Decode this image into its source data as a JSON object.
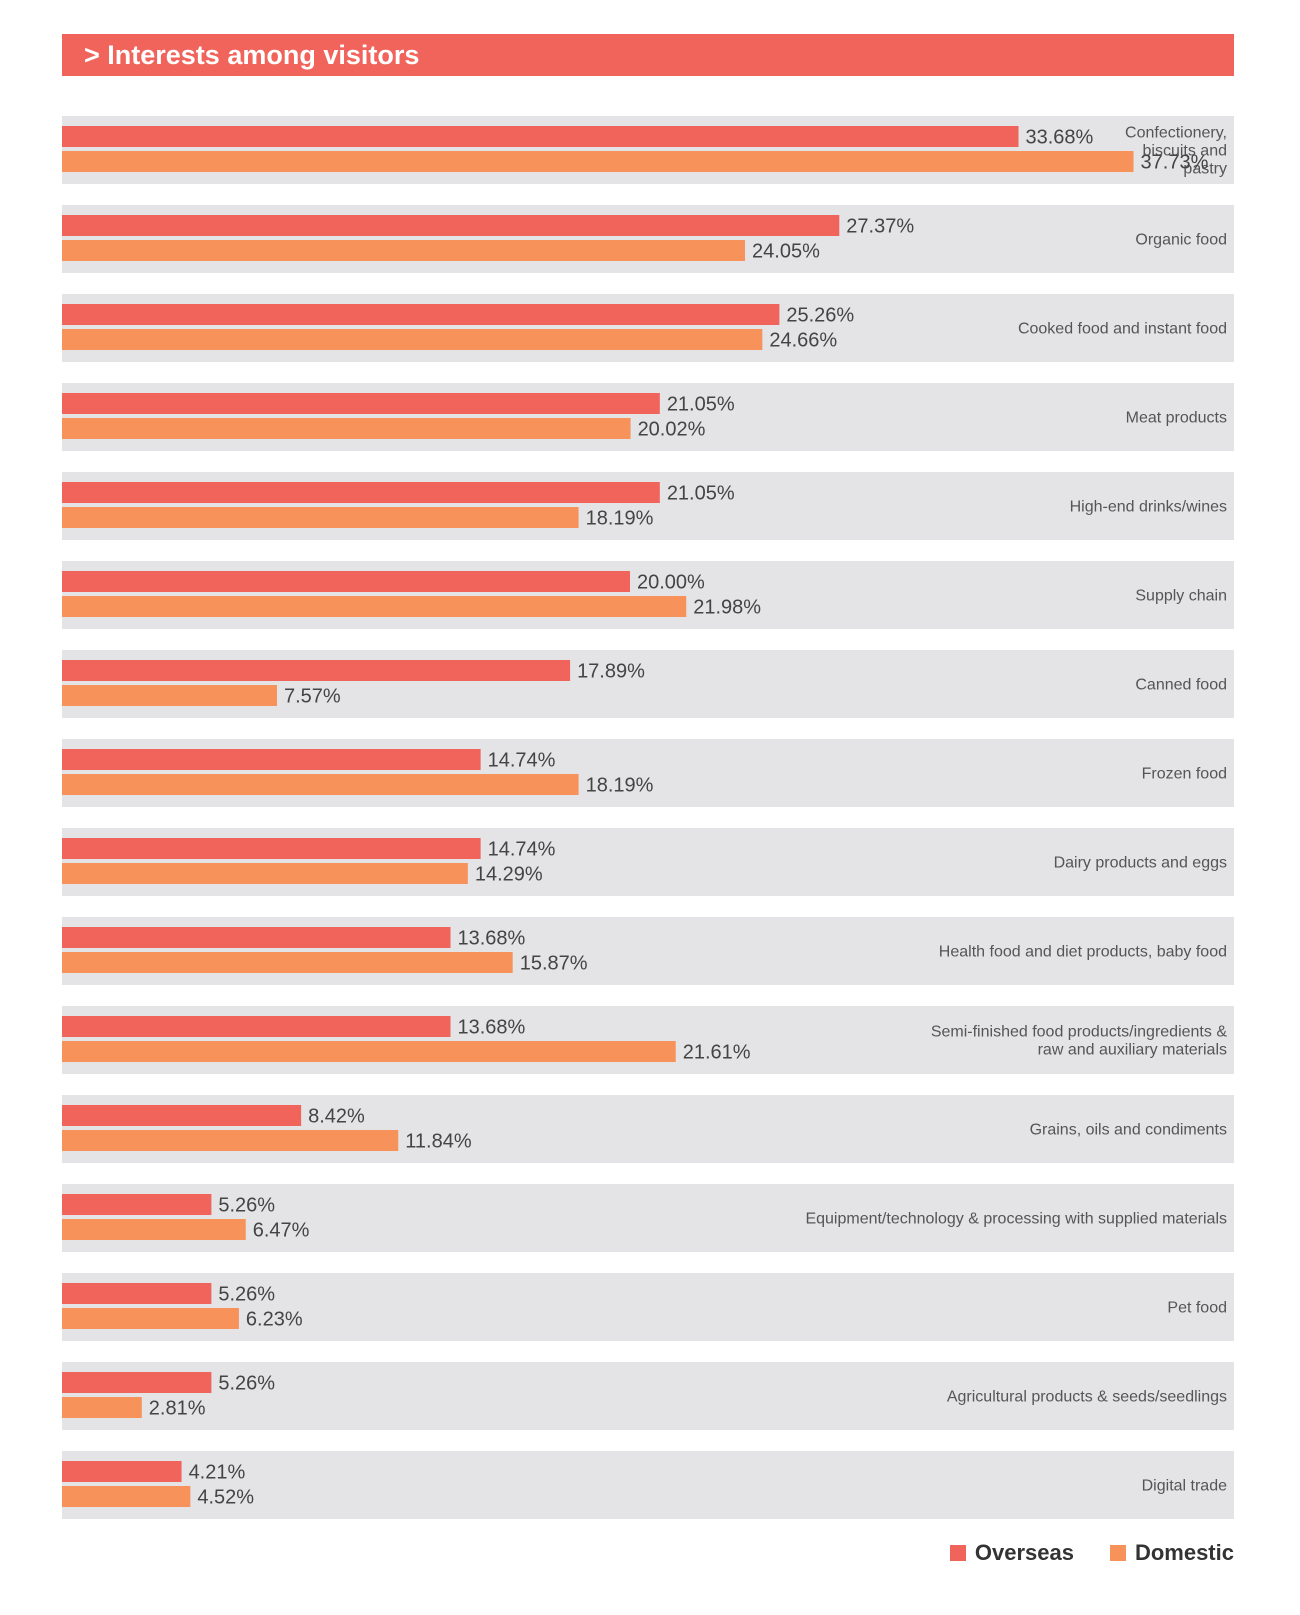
{
  "chart_data": {
    "type": "bar",
    "orientation": "horizontal",
    "title": "> Interests among visitors",
    "categories": [
      "Confectionery, biscuits and pastry",
      "Organic food",
      "Cooked food and instant food",
      "Meat products",
      "High-end drinks/wines",
      "Supply chain",
      "Canned food",
      "Frozen food",
      "Dairy products and eggs",
      "Health food and diet products, baby food",
      "Semi-finished food products/ingredients & raw and auxiliary materials",
      "Grains, oils and condiments",
      "Equipment/technology & processing with supplied materials",
      "Pet food",
      "Agricultural products & seeds/seedlings",
      "Digital trade"
    ],
    "category_lines": [
      [
        "Confectionery,",
        "biscuits and",
        "pastry"
      ],
      [
        "Organic food"
      ],
      [
        "Cooked food and instant food"
      ],
      [
        "Meat products"
      ],
      [
        "High-end drinks/wines"
      ],
      [
        "Supply chain"
      ],
      [
        "Canned food"
      ],
      [
        "Frozen food"
      ],
      [
        "Dairy products and eggs"
      ],
      [
        "Health food and diet products, baby food"
      ],
      [
        "Semi-finished food products/ingredients &",
        "raw and auxiliary materials"
      ],
      [
        "Grains, oils and condiments"
      ],
      [
        "Equipment/technology & processing with supplied materials"
      ],
      [
        "Pet food"
      ],
      [
        "Agricultural products & seeds/seedlings"
      ],
      [
        "Digital trade"
      ]
    ],
    "series": [
      {
        "name": "Overseas",
        "color": "#f0645c",
        "values": [
          33.68,
          27.37,
          25.26,
          21.05,
          21.05,
          20.0,
          17.89,
          14.74,
          14.74,
          13.68,
          13.68,
          8.42,
          5.26,
          5.26,
          5.26,
          4.21
        ],
        "labels": [
          "33.68%",
          "27.37%",
          "25.26%",
          "21.05%",
          "21.05%",
          "20.00%",
          "17.89%",
          "14.74%",
          "14.74%",
          "13.68%",
          "13.68%",
          "8.42%",
          "5.26%",
          "5.26%",
          "5.26%",
          "4.21%"
        ]
      },
      {
        "name": "Domestic",
        "color": "#f7935a",
        "values": [
          37.73,
          24.05,
          24.66,
          20.02,
          18.19,
          21.98,
          7.57,
          18.19,
          14.29,
          15.87,
          21.61,
          11.84,
          6.47,
          6.23,
          2.81,
          4.52
        ],
        "labels": [
          "37.73%",
          "24.05%",
          "24.66%",
          "20.02%",
          "18.19%",
          "21.98%",
          "7.57%",
          "18.19%",
          "14.29%",
          "15.87%",
          "21.61%",
          "11.84%",
          "6.47%",
          "6.23%",
          "2.81%",
          "4.52%"
        ]
      }
    ],
    "row_background": "#e4e4e6",
    "legend_position": "bottom-right",
    "grid": false
  },
  "legend": {
    "overseas_label": "Overseas",
    "domestic_label": "Domestic"
  }
}
